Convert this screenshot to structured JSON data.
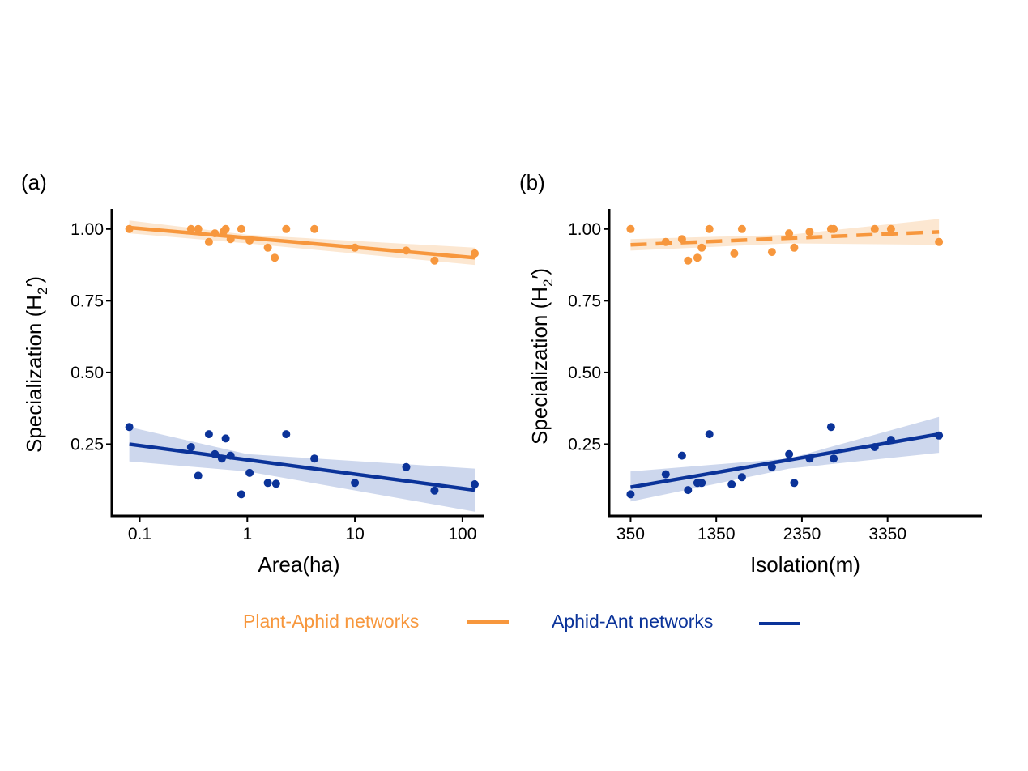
{
  "colors": {
    "plant_aphid": "#F7973D",
    "aphid_ant": "#0B3399",
    "plant_aphid_band": "#FCE3C9",
    "aphid_ant_band": "#C4D0EA"
  },
  "legend": {
    "placement": "bottom-center",
    "items": [
      {
        "label": "Plant-Aphid networks",
        "color": "#F7973D"
      },
      {
        "label": "Aphid-Ant networks",
        "color": "#0B3399"
      }
    ]
  },
  "chart_data": [
    {
      "panel": "(a)",
      "type": "scatter",
      "xlabel": "Area(ha)",
      "ylabel_main": "Specialization (H",
      "ylabel_sub": "2",
      "ylabel_end": "′)",
      "xscale": "log",
      "xlim": [
        0.055,
        160
      ],
      "ylim": [
        0.0,
        1.07
      ],
      "xticks": [
        {
          "value": 0.1,
          "label": "0.1"
        },
        {
          "value": 1,
          "label": "1"
        },
        {
          "value": 10,
          "label": "10"
        },
        {
          "value": 100,
          "label": "100"
        }
      ],
      "yticks": [
        {
          "value": 0.25,
          "label": "0.25"
        },
        {
          "value": 0.5,
          "label": "0.50"
        },
        {
          "value": 0.75,
          "label": "0.75"
        },
        {
          "value": 1.0,
          "label": "1.00"
        }
      ],
      "series": [
        {
          "group": "plant_aphid",
          "points": [
            [
              0.08,
              1.0
            ],
            [
              0.3,
              1.0
            ],
            [
              0.35,
              1.0
            ],
            [
              0.44,
              0.955
            ],
            [
              0.5,
              0.985
            ],
            [
              0.6,
              0.99
            ],
            [
              0.63,
              1.0
            ],
            [
              0.7,
              0.965
            ],
            [
              0.88,
              1.0
            ],
            [
              1.05,
              0.96
            ],
            [
              1.55,
              0.935
            ],
            [
              1.8,
              0.9
            ],
            [
              2.3,
              1.0
            ],
            [
              4.2,
              1.0
            ],
            [
              10,
              0.935
            ],
            [
              30,
              0.925
            ],
            [
              55,
              0.89
            ],
            [
              130,
              0.915
            ]
          ],
          "fit": {
            "x": [
              0.08,
              130
            ],
            "y": [
              1.005,
              0.9
            ],
            "dashed": false
          },
          "band": {
            "x": [
              0.08,
              1.0,
              130
            ],
            "lower": [
              0.985,
              0.95,
              0.875
            ],
            "upper": [
              1.03,
              0.98,
              0.935
            ]
          }
        },
        {
          "group": "aphid_ant",
          "points": [
            [
              0.08,
              0.31
            ],
            [
              0.3,
              0.24
            ],
            [
              0.35,
              0.14
            ],
            [
              0.44,
              0.285
            ],
            [
              0.5,
              0.215
            ],
            [
              0.58,
              0.2
            ],
            [
              0.63,
              0.27
            ],
            [
              0.7,
              0.21
            ],
            [
              0.88,
              0.075
            ],
            [
              1.05,
              0.15
            ],
            [
              1.55,
              0.115
            ],
            [
              1.85,
              0.112
            ],
            [
              2.3,
              0.285
            ],
            [
              4.2,
              0.2
            ],
            [
              10,
              0.115
            ],
            [
              30,
              0.17
            ],
            [
              55,
              0.088
            ],
            [
              130,
              0.11
            ]
          ],
          "fit": {
            "x": [
              0.08,
              130
            ],
            "y": [
              0.25,
              0.09
            ],
            "dashed": false
          },
          "band": {
            "x": [
              0.08,
              1.0,
              130
            ],
            "lower": [
              0.19,
              0.155,
              0.015
            ],
            "upper": [
              0.31,
              0.215,
              0.165
            ]
          }
        }
      ]
    },
    {
      "panel": "(b)",
      "type": "scatter",
      "xlabel": "Isolation(m)",
      "ylabel_main": "Specialization (H",
      "ylabel_sub": "2",
      "ylabel_end": "′)",
      "xscale": "linear",
      "xlim": [
        100,
        4450
      ],
      "ylim": [
        0.0,
        1.07
      ],
      "xticks": [
        {
          "value": 350,
          "label": "350"
        },
        {
          "value": 1350,
          "label": "1350"
        },
        {
          "value": 2350,
          "label": "2350"
        },
        {
          "value": 3350,
          "label": "3350"
        }
      ],
      "yticks": [
        {
          "value": 0.25,
          "label": "0.25"
        },
        {
          "value": 0.5,
          "label": "0.50"
        },
        {
          "value": 0.75,
          "label": "0.75"
        },
        {
          "value": 1.0,
          "label": "1.00"
        }
      ],
      "series": [
        {
          "group": "plant_aphid",
          "points": [
            [
              350,
              1.0
            ],
            [
              760,
              0.955
            ],
            [
              950,
              0.965
            ],
            [
              1020,
              0.89
            ],
            [
              1130,
              0.9
            ],
            [
              1180,
              0.935
            ],
            [
              1270,
              1.0
            ],
            [
              1560,
              0.915
            ],
            [
              1650,
              1.0
            ],
            [
              2000,
              0.92
            ],
            [
              2200,
              0.985
            ],
            [
              2260,
              0.935
            ],
            [
              2440,
              0.99
            ],
            [
              2690,
              1.0
            ],
            [
              2720,
              1.0
            ],
            [
              3200,
              1.0
            ],
            [
              3390,
              1.0
            ],
            [
              3950,
              0.955
            ]
          ],
          "fit": {
            "x": [
              350,
              3950
            ],
            "y": [
              0.945,
              0.99
            ],
            "dashed": true
          },
          "band": {
            "x": [
              350,
              2200,
              3950
            ],
            "lower": [
              0.925,
              0.95,
              0.945
            ],
            "upper": [
              0.965,
              0.98,
              1.035
            ]
          }
        },
        {
          "group": "aphid_ant",
          "points": [
            [
              350,
              0.075
            ],
            [
              760,
              0.145
            ],
            [
              950,
              0.21
            ],
            [
              1020,
              0.09
            ],
            [
              1130,
              0.115
            ],
            [
              1180,
              0.115
            ],
            [
              1270,
              0.285
            ],
            [
              1530,
              0.11
            ],
            [
              1650,
              0.135
            ],
            [
              2000,
              0.17
            ],
            [
              2200,
              0.215
            ],
            [
              2260,
              0.115
            ],
            [
              2440,
              0.2
            ],
            [
              2690,
              0.31
            ],
            [
              2720,
              0.2
            ],
            [
              3200,
              0.24
            ],
            [
              3390,
              0.265
            ],
            [
              3950,
              0.28
            ]
          ],
          "fit": {
            "x": [
              350,
              3950
            ],
            "y": [
              0.1,
              0.285
            ],
            "dashed": false
          },
          "band": {
            "x": [
              350,
              2200,
              3950
            ],
            "lower": [
              0.05,
              0.165,
              0.22
            ],
            "upper": [
              0.155,
              0.2,
              0.345
            ]
          }
        }
      ]
    }
  ]
}
